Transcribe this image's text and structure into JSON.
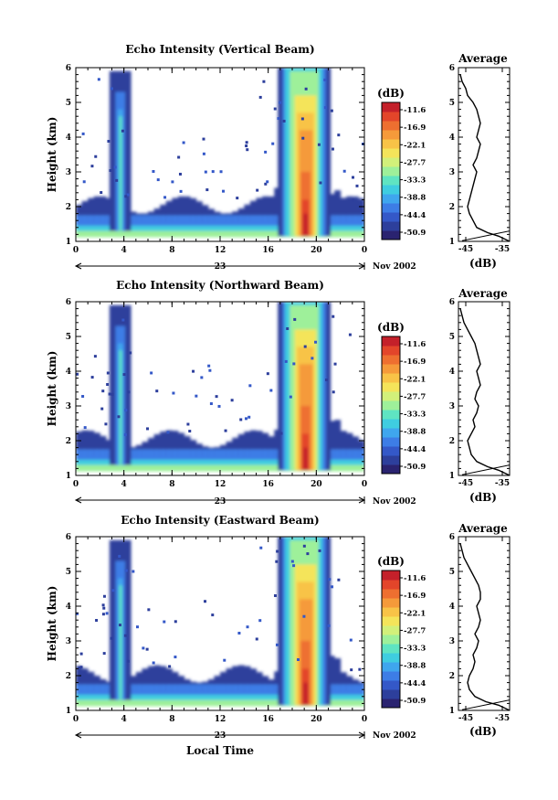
{
  "chart_data": [
    {
      "type": "heatmap",
      "title": "Echo Intensity (Vertical Beam)",
      "ylabel": "Height (km)",
      "xlabel": "",
      "xticks": [
        "0",
        "4",
        "8",
        "12",
        "16",
        "20",
        "0"
      ],
      "yticks": [
        "1",
        "2",
        "3",
        "4",
        "5",
        "6"
      ],
      "xlim": [
        0,
        24
      ],
      "ylim": [
        1,
        6
      ],
      "day_label": "23",
      "date_label": "Nov 2002",
      "colorbar": {
        "title": "(dB)",
        "ticks": [
          "-11.6",
          "-16.9",
          "-22.1",
          "-27.7",
          "-33.3",
          "-38.8",
          "-44.4",
          "-50.9"
        ]
      },
      "profile": {
        "title": "Average",
        "xlabel": "(dB)",
        "xticks": [
          "-45",
          "-35"
        ],
        "xlim": [
          -47,
          -33
        ],
        "heights": [
          1.0,
          1.15,
          1.25,
          1.4,
          1.6,
          1.8,
          2.0,
          2.2,
          2.4,
          2.6,
          2.8,
          3.0,
          3.2,
          3.4,
          3.6,
          3.8,
          4.0,
          4.2,
          4.4,
          4.6,
          4.8,
          5.0,
          5.2,
          5.4,
          5.6,
          5.8
        ],
        "values": [
          -33,
          -36,
          -39,
          -42,
          -43,
          -44,
          -44.5,
          -44,
          -43.5,
          -43,
          -42.5,
          -42,
          -43,
          -42,
          -41.5,
          -41,
          -42,
          -41.5,
          -41,
          -41.5,
          -42,
          -43,
          -44.5,
          -45,
          -46,
          -46.5
        ]
      }
    },
    {
      "type": "heatmap",
      "title": "Echo Intensity (Northward Beam)",
      "ylabel": "Height (km)",
      "xlabel": "",
      "xticks": [
        "0",
        "4",
        "8",
        "12",
        "16",
        "20",
        "0"
      ],
      "yticks": [
        "1",
        "2",
        "3",
        "4",
        "5",
        "6"
      ],
      "xlim": [
        0,
        24
      ],
      "ylim": [
        1,
        6
      ],
      "day_label": "23",
      "date_label": "Nov 2002",
      "colorbar": {
        "title": "(dB)",
        "ticks": [
          "-11.6",
          "-16.9",
          "-22.1",
          "-27.7",
          "-33.3",
          "-38.8",
          "-44.4",
          "-50.9"
        ]
      },
      "profile": {
        "title": "Average",
        "xlabel": "(dB)",
        "xticks": [
          "-45",
          "-35"
        ],
        "xlim": [
          -47,
          -33
        ],
        "heights": [
          1.0,
          1.15,
          1.25,
          1.4,
          1.6,
          1.8,
          2.0,
          2.2,
          2.4,
          2.6,
          2.8,
          3.0,
          3.2,
          3.4,
          3.6,
          3.8,
          4.0,
          4.2,
          4.4,
          4.6,
          4.8,
          5.0,
          5.2,
          5.4,
          5.6,
          5.8
        ],
        "values": [
          -33,
          -36,
          -39,
          -42,
          -43.5,
          -44,
          -44.5,
          -43.5,
          -42.5,
          -43,
          -42,
          -41.5,
          -42.5,
          -42,
          -41,
          -41.5,
          -42,
          -41,
          -41.5,
          -42,
          -42.5,
          -43.5,
          -44.5,
          -45.5,
          -46,
          -46.5
        ]
      }
    },
    {
      "type": "heatmap",
      "title": "Echo Intensity (Eastward Beam)",
      "ylabel": "Height (km)",
      "xlabel": "Local Time",
      "xticks": [
        "0",
        "4",
        "8",
        "12",
        "16",
        "20",
        "0"
      ],
      "yticks": [
        "1",
        "2",
        "3",
        "4",
        "5",
        "6"
      ],
      "xlim": [
        0,
        24
      ],
      "ylim": [
        1,
        6
      ],
      "day_label": "23",
      "date_label": "Nov 2002",
      "colorbar": {
        "title": "(dB)",
        "ticks": [
          "-11.6",
          "-16.9",
          "-22.1",
          "-27.7",
          "-33.3",
          "-38.8",
          "-44.4",
          "-50.9"
        ]
      },
      "profile": {
        "title": "Average",
        "xlabel": "(dB)",
        "xticks": [
          "-45",
          "-35"
        ],
        "xlim": [
          -47,
          -33
        ],
        "heights": [
          1.0,
          1.15,
          1.25,
          1.4,
          1.6,
          1.8,
          2.0,
          2.2,
          2.4,
          2.6,
          2.8,
          3.0,
          3.2,
          3.4,
          3.6,
          3.8,
          4.0,
          4.2,
          4.4,
          4.6,
          4.8,
          5.0,
          5.2,
          5.4,
          5.6,
          5.8
        ],
        "values": [
          -33,
          -36,
          -39.5,
          -42.5,
          -44,
          -44.5,
          -44,
          -43,
          -42.5,
          -43,
          -42,
          -41.5,
          -42.5,
          -41.5,
          -41,
          -41.5,
          -42,
          -41,
          -41,
          -41.5,
          -42.5,
          -43.5,
          -44.5,
          -45.5,
          -46,
          -46.5
        ]
      }
    }
  ],
  "colorscale": [
    "#2a2370",
    "#2d3f9c",
    "#3458c8",
    "#3d7de6",
    "#3fa6ee",
    "#3fcde0",
    "#5fe4c2",
    "#9ef09a",
    "#d2f07a",
    "#f4e45a",
    "#f8c347",
    "#f59a3a",
    "#ee6f30",
    "#e3452a",
    "#c4202a"
  ]
}
